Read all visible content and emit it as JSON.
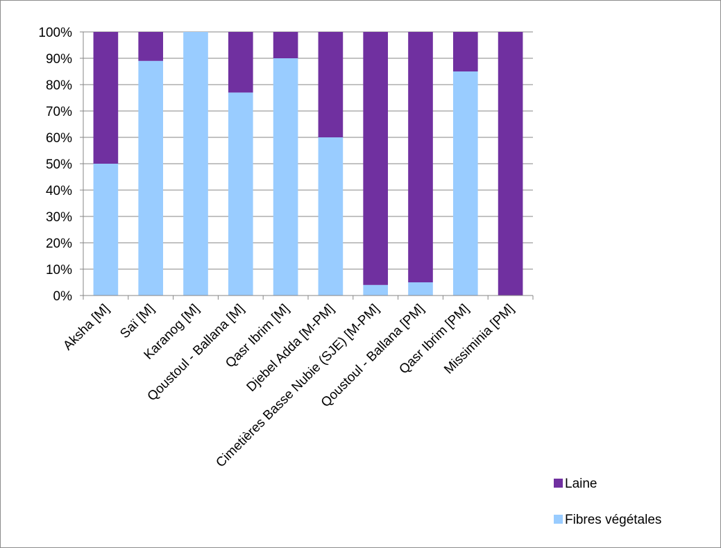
{
  "chart_data": {
    "type": "bar",
    "stacked": "percent",
    "categories": [
      "Aksha [M]",
      "Saï [M]",
      "Karanog [M]",
      "Qoustoul - Ballana [M]",
      "Qasr Ibrim [M]",
      "Djebel Adda [M-PM]",
      "Cimetières Basse Nubie (SJE) [M-PM]",
      "Qoustoul - Ballana [PM]",
      "Qasr Ibrim [PM]",
      "Missiminia [PM]"
    ],
    "series": [
      {
        "name": "Fibres végétales",
        "color": "#99ccff",
        "values": [
          50,
          89,
          100,
          77,
          90,
          60,
          4,
          5,
          85,
          0
        ]
      },
      {
        "name": "Laine",
        "color": "#7030a0",
        "values": [
          50,
          11,
          0,
          23,
          10,
          40,
          96,
          95,
          15,
          100
        ]
      }
    ],
    "yticks": [
      "0%",
      "10%",
      "20%",
      "30%",
      "40%",
      "50%",
      "60%",
      "70%",
      "80%",
      "90%",
      "100%"
    ],
    "ylim": [
      0,
      100
    ],
    "grid": true,
    "legend": {
      "placement": "bottom-right",
      "entries": [
        {
          "name": "Laine",
          "color": "#7030a0"
        },
        {
          "name": "Fibres végétales",
          "color": "#99ccff"
        }
      ]
    }
  }
}
